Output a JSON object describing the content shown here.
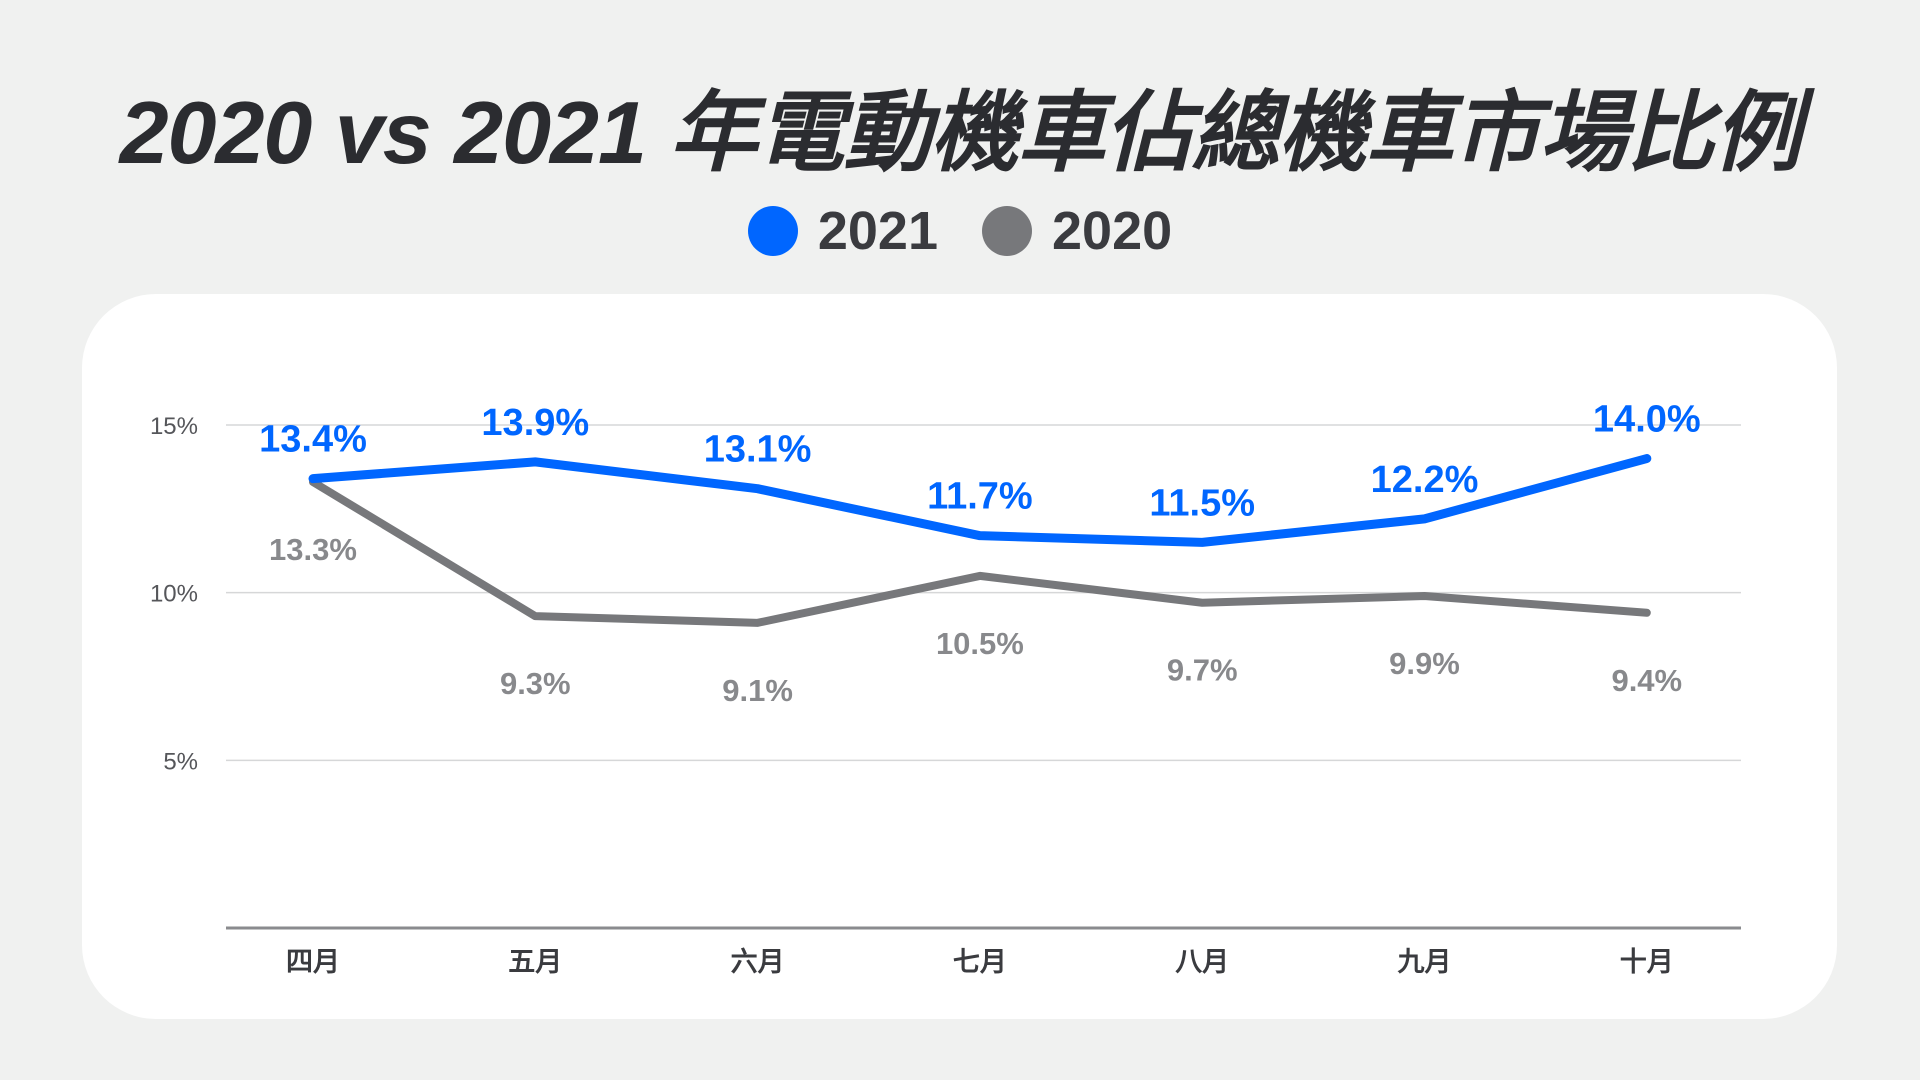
{
  "chart_data": {
    "type": "line",
    "title": "2020 vs 2021 年電動機車佔總機車市場比例",
    "categories": [
      "四月",
      "五月",
      "六月",
      "七月",
      "八月",
      "九月",
      "十月"
    ],
    "series": [
      {
        "name": "2021",
        "color": "#0066ff",
        "values": [
          13.4,
          13.9,
          13.1,
          11.7,
          11.5,
          12.2,
          14.0
        ],
        "labels": [
          "13.4%",
          "13.9%",
          "13.1%",
          "11.7%",
          "11.5%",
          "12.2%",
          "14.0%"
        ]
      },
      {
        "name": "2020",
        "color": "#77787b",
        "values": [
          13.3,
          9.3,
          9.1,
          10.5,
          9.7,
          9.9,
          9.4
        ],
        "labels": [
          "13.3%",
          "9.3%",
          "9.1%",
          "10.5%",
          "9.7%",
          "9.9%",
          "9.4%"
        ]
      }
    ],
    "yticks": [
      5,
      10,
      15
    ],
    "ytick_labels": [
      "5%",
      "10%",
      "15%"
    ],
    "ylim": [
      0,
      15
    ],
    "grid": true,
    "legend_placement": "top-center"
  }
}
